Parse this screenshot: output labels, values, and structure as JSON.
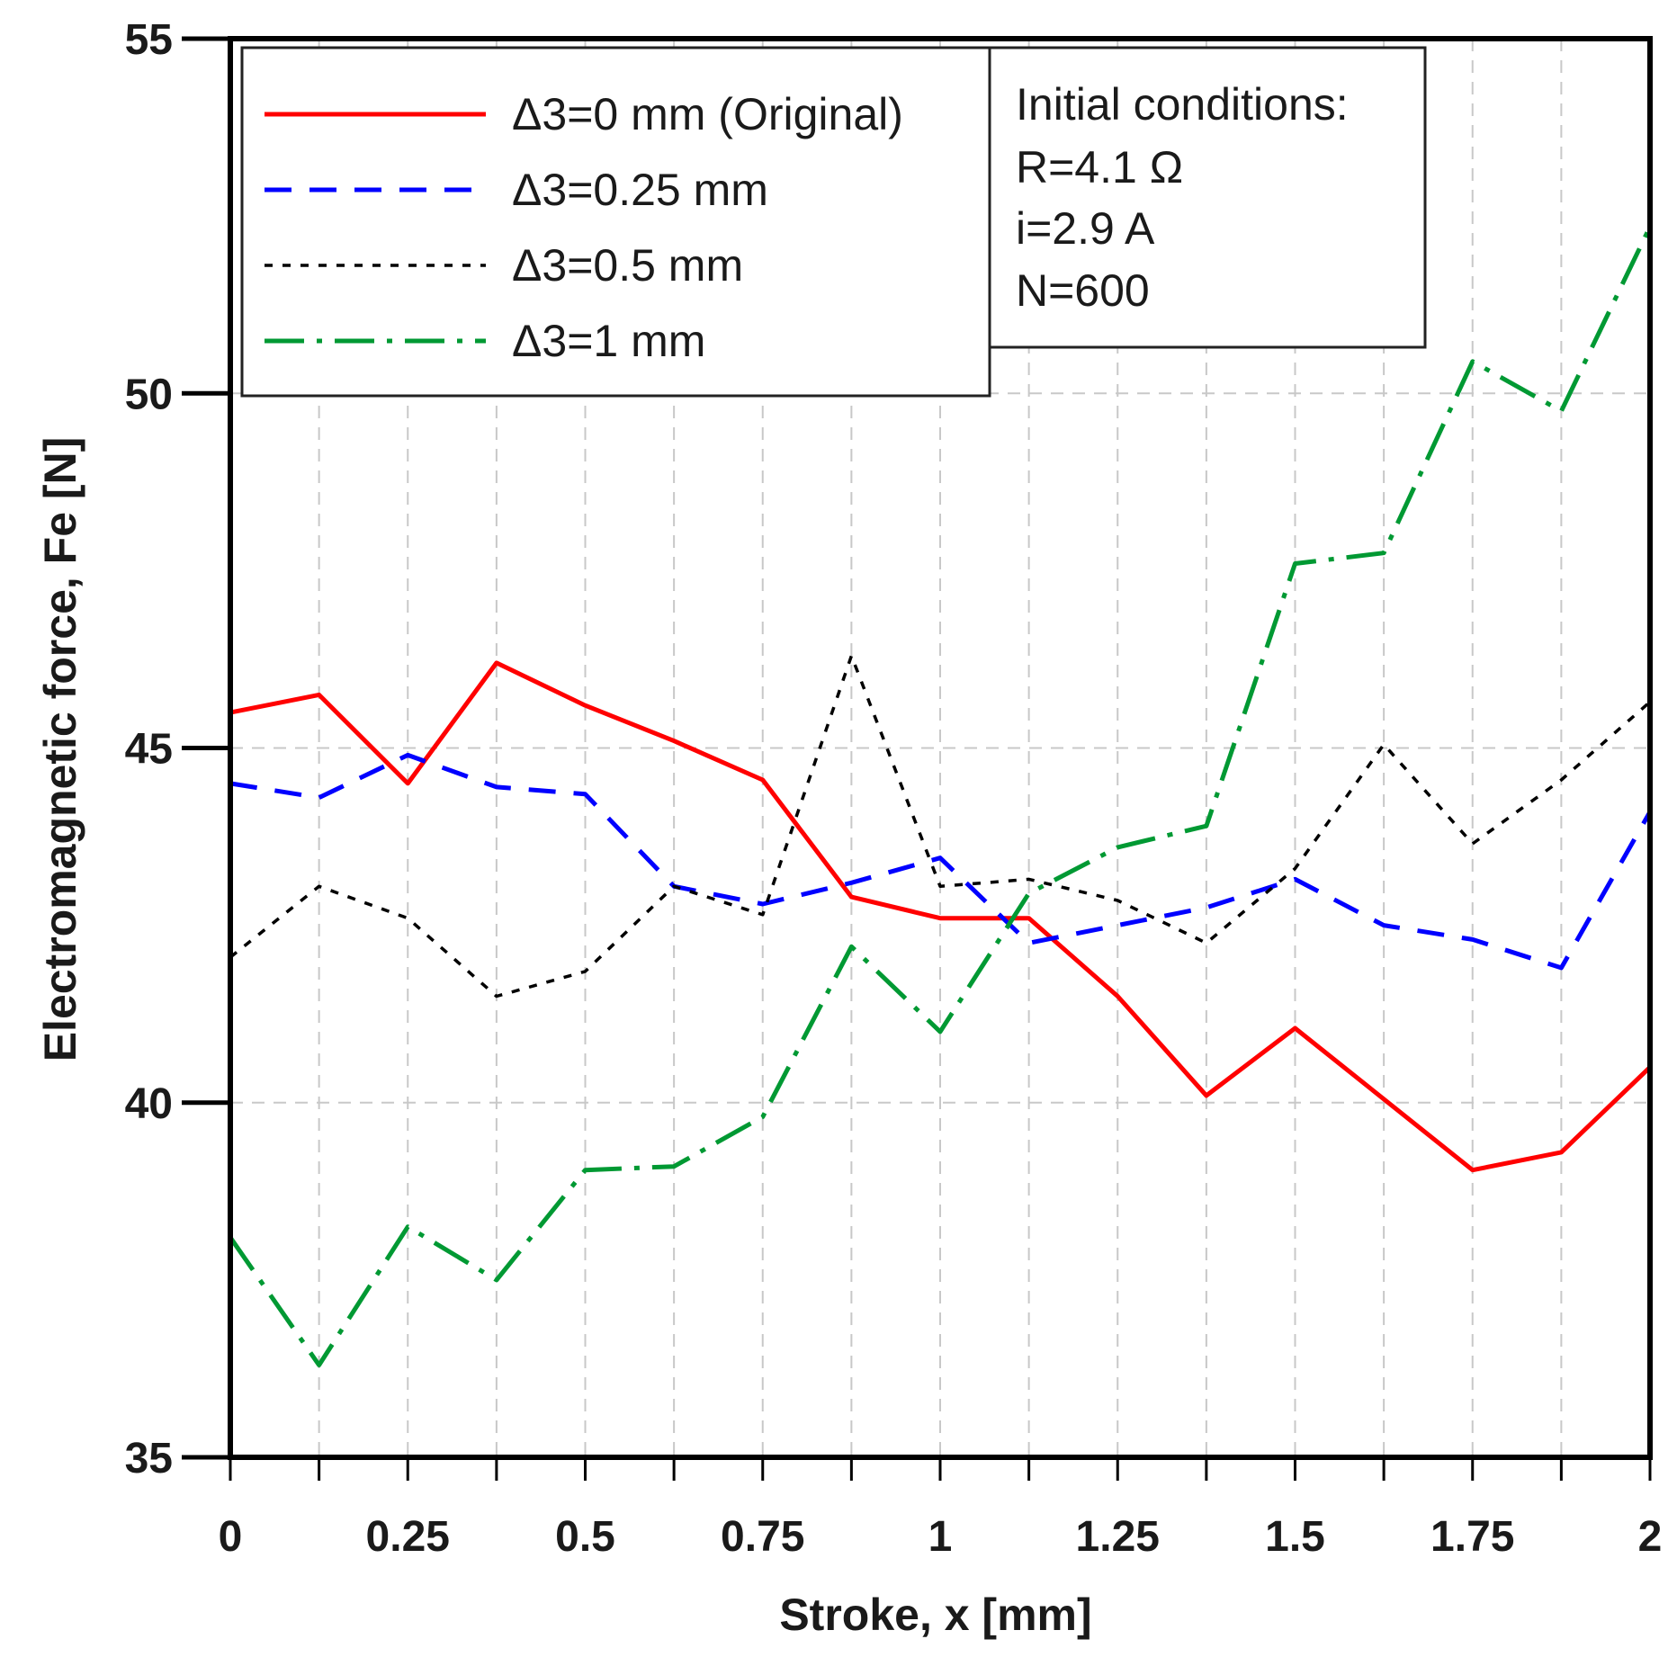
{
  "chart_data": {
    "type": "line",
    "title": "",
    "xlabel": "Stroke, x [mm]",
    "ylabel": "Electromagnetic force, Fe [N]",
    "xlim": [
      0,
      2
    ],
    "ylim": [
      35,
      55
    ],
    "x_ticks": [
      "0",
      "0.25",
      "0.5",
      "0.75",
      "1",
      "1.25",
      "1.5",
      "1.75",
      "2"
    ],
    "y_ticks": [
      "35",
      "40",
      "45",
      "50",
      "55"
    ],
    "grid": true,
    "legend_position": "top-left",
    "x": [
      0,
      0.125,
      0.25,
      0.375,
      0.5,
      0.625,
      0.75,
      0.875,
      1,
      1.125,
      1.25,
      1.375,
      1.5,
      1.625,
      1.75,
      1.875,
      2
    ],
    "series": [
      {
        "name": "Δ3=0 mm (Original)",
        "color": "#ff0000",
        "style": "solid",
        "values": [
          45.5,
          45.75,
          44.5,
          46.2,
          45.6,
          45.1,
          44.55,
          42.9,
          42.6,
          42.6,
          41.5,
          40.1,
          41.05,
          40.05,
          39.05,
          39.3,
          40.5
        ]
      },
      {
        "name": "Δ3=0.25 mm",
        "color": "#0000ff",
        "style": "dashed",
        "values": [
          44.5,
          44.3,
          44.9,
          44.45,
          44.35,
          43.05,
          42.8,
          43.1,
          43.45,
          42.25,
          42.5,
          42.75,
          43.15,
          42.5,
          42.3,
          41.9,
          44.1
        ]
      },
      {
        "name": "Δ3=0.5 mm",
        "color": "#000000",
        "style": "dotted",
        "values": [
          42.05,
          43.05,
          42.6,
          41.5,
          41.85,
          43.05,
          42.65,
          46.3,
          43.05,
          43.15,
          42.85,
          42.25,
          43.3,
          45.05,
          43.65,
          44.55,
          45.65
        ]
      },
      {
        "name": "Δ3=1 mm",
        "color": "#009933",
        "style": "dashdot",
        "values": [
          38.1,
          36.3,
          38.25,
          37.5,
          39.05,
          39.1,
          39.8,
          42.2,
          41,
          42.95,
          43.6,
          43.9,
          47.6,
          47.75,
          50.45,
          49.75,
          52.35
        ]
      }
    ],
    "annotation": {
      "title": "Initial conditions:",
      "lines": [
        "R=4.1 Ω",
        "i=2.9 A",
        "N=600"
      ]
    }
  }
}
